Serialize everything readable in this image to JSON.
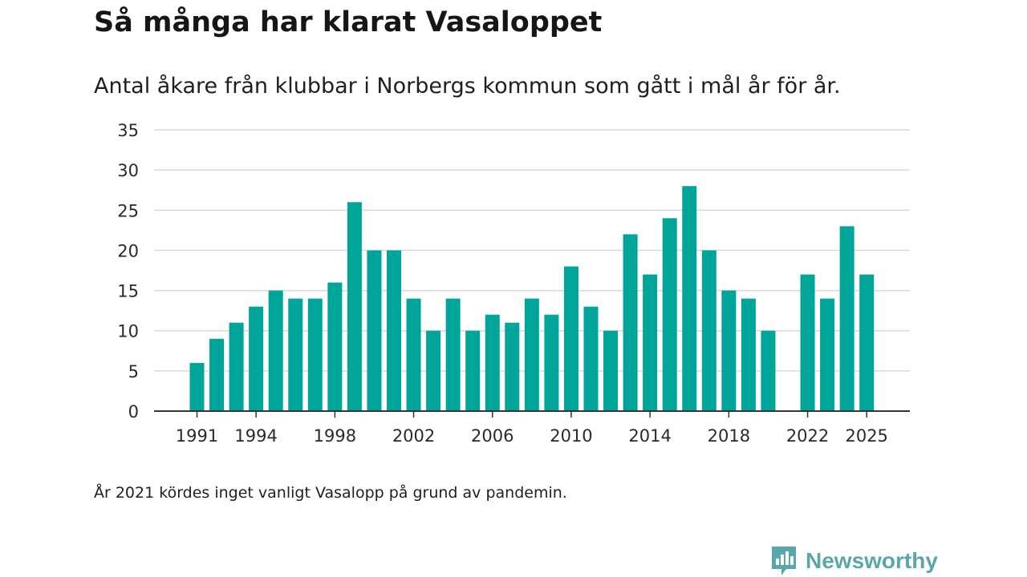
{
  "chart_data": {
    "type": "bar",
    "title": "Så många har klarat Vasaloppet",
    "subtitle": "Antal åkare från klubbar i Norbergs kommun som gått i mål år för år.",
    "x": [
      1991,
      1992,
      1993,
      1994,
      1995,
      1996,
      1997,
      1998,
      1999,
      2000,
      2001,
      2002,
      2003,
      2004,
      2005,
      2006,
      2007,
      2008,
      2009,
      2010,
      2011,
      2012,
      2013,
      2014,
      2015,
      2016,
      2017,
      2018,
      2019,
      2020,
      2021,
      2022,
      2023,
      2024,
      2025
    ],
    "values": [
      6,
      9,
      11,
      13,
      15,
      14,
      14,
      16,
      26,
      20,
      20,
      14,
      10,
      14,
      10,
      12,
      11,
      14,
      12,
      18,
      13,
      10,
      22,
      17,
      24,
      28,
      20,
      15,
      14,
      10,
      null,
      17,
      14,
      23,
      17
    ],
    "xticks": [
      "1991",
      "1994",
      "1998",
      "2002",
      "2006",
      "2010",
      "2014",
      "2018",
      "2022",
      "2025"
    ],
    "yticks": [
      "0",
      "5",
      "10",
      "15",
      "20",
      "25",
      "30",
      "35"
    ],
    "ylim": [
      0,
      35
    ],
    "xlabel": "",
    "ylabel": "",
    "grid": true,
    "bar_color": "#00a59a"
  },
  "note": "År 2021 kördes inget vanligt Vasalopp på grund av pandemin.",
  "brand": {
    "name": "Newsworthy",
    "icon": "newsworthy-logo-icon",
    "color": "#5aa7ab"
  }
}
